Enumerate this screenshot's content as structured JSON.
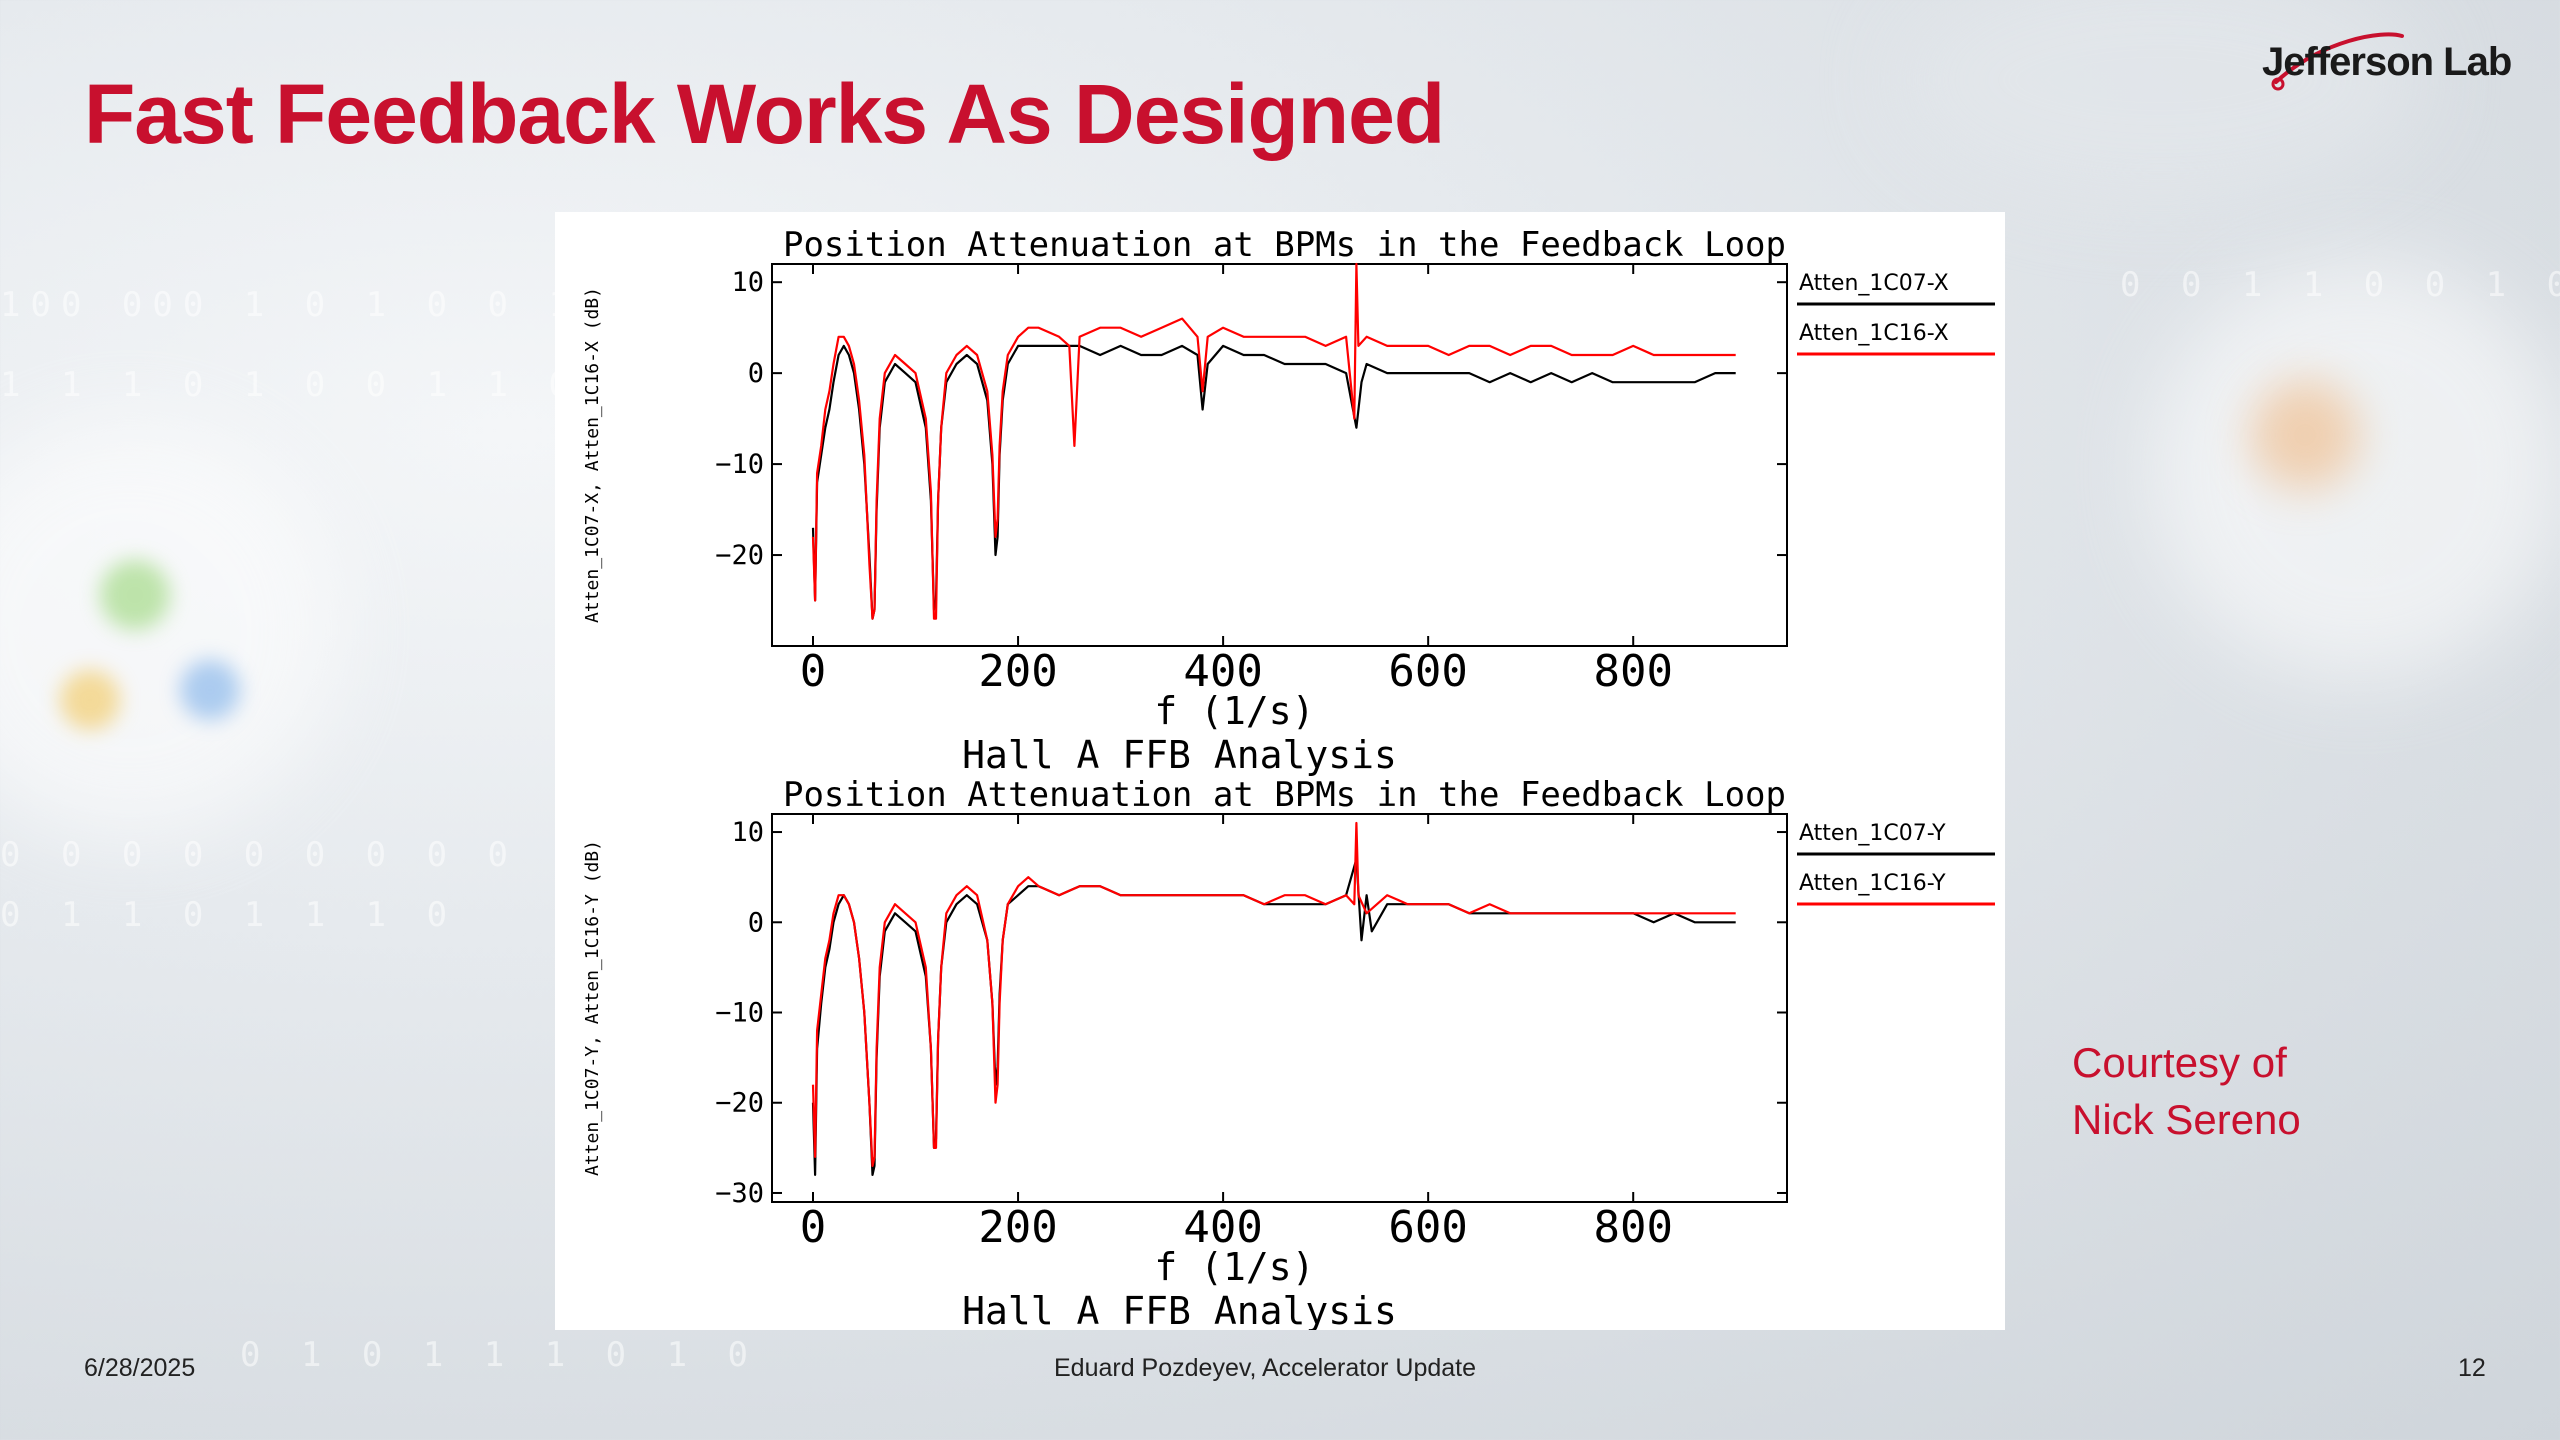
{
  "slide": {
    "title": "Fast Feedback Works As Designed",
    "logo_text": "Jefferson Lab",
    "courtesy_line1": "Courtesy of",
    "courtesy_line2": "Nick Sereno",
    "footer_date": "6/28/2025",
    "footer_center": "Eduard Pozdeyev, Accelerator Update",
    "page_number": "12",
    "colors": {
      "title": "#c8102e",
      "series_black": "#000000",
      "series_red": "#ff0000"
    }
  },
  "chart_data": [
    {
      "type": "line",
      "title": "Position Attenuation at BPMs in the Feedback Loop",
      "subtitle": "Hall A FFB Analysis",
      "xlabel": "f (1/s)",
      "ylabel": "Atten_1C07-X, Atten_1C16-X (dB)",
      "xlim": [
        -40,
        950
      ],
      "ylim": [
        -30,
        12
      ],
      "xticks": [
        0,
        200,
        400,
        600,
        800
      ],
      "xtick_labels": [
        "0",
        "200",
        "400",
        "600",
        "800"
      ],
      "yticks": [
        10,
        0,
        -10,
        -20
      ],
      "ytick_labels": [
        "10",
        "0",
        "−10",
        "−20"
      ],
      "legend_position": "right",
      "series": [
        {
          "name": "Atten_1C07-X",
          "color": "#000000",
          "x": [
            0,
            2,
            4,
            8,
            12,
            16,
            20,
            25,
            30,
            35,
            40,
            45,
            50,
            55,
            58,
            60,
            62,
            65,
            70,
            80,
            90,
            100,
            110,
            115,
            118,
            120,
            122,
            125,
            130,
            140,
            150,
            160,
            170,
            175,
            178,
            180,
            182,
            185,
            190,
            200,
            210,
            220,
            240,
            260,
            280,
            300,
            320,
            340,
            360,
            375,
            380,
            385,
            400,
            420,
            440,
            460,
            480,
            500,
            520,
            530,
            535,
            540,
            560,
            580,
            600,
            620,
            640,
            660,
            680,
            700,
            720,
            740,
            760,
            780,
            800,
            820,
            840,
            860,
            880,
            900
          ],
          "y": [
            -17,
            -25,
            -12,
            -9,
            -6,
            -4,
            -1,
            2,
            3,
            2,
            0,
            -4,
            -10,
            -20,
            -27,
            -26,
            -15,
            -6,
            -1,
            1,
            0,
            -1,
            -6,
            -14,
            -26,
            -25,
            -14,
            -6,
            -1,
            1,
            2,
            1,
            -3,
            -10,
            -20,
            -18,
            -9,
            -3,
            1,
            3,
            3,
            3,
            3,
            3,
            2,
            3,
            2,
            2,
            3,
            2,
            -4,
            1,
            3,
            2,
            2,
            1,
            1,
            1,
            0,
            -6,
            -1,
            1,
            0,
            0,
            0,
            0,
            0,
            -1,
            0,
            -1,
            0,
            -1,
            0,
            -1,
            -1,
            -1,
            -1,
            -1,
            0,
            0
          ]
        },
        {
          "name": "Atten_1C16-X",
          "color": "#ff0000",
          "x": [
            0,
            2,
            4,
            8,
            12,
            16,
            20,
            25,
            30,
            35,
            40,
            45,
            50,
            55,
            58,
            60,
            62,
            65,
            70,
            80,
            90,
            100,
            110,
            115,
            118,
            120,
            122,
            125,
            130,
            140,
            150,
            160,
            170,
            175,
            178,
            180,
            182,
            185,
            190,
            200,
            210,
            220,
            240,
            250,
            255,
            260,
            280,
            300,
            320,
            340,
            360,
            375,
            380,
            385,
            400,
            420,
            440,
            460,
            480,
            500,
            520,
            528,
            530,
            532,
            540,
            560,
            580,
            600,
            620,
            640,
            660,
            680,
            700,
            720,
            740,
            760,
            780,
            800,
            820,
            840,
            860,
            880,
            900
          ],
          "y": [
            -18,
            -25,
            -11,
            -8,
            -4,
            -2,
            1,
            4,
            4,
            3,
            1,
            -3,
            -9,
            -21,
            -27,
            -26,
            -14,
            -5,
            0,
            2,
            1,
            0,
            -5,
            -13,
            -27,
            -27,
            -14,
            -6,
            0,
            2,
            3,
            2,
            -2,
            -9,
            -18,
            -16,
            -8,
            -2,
            2,
            4,
            5,
            5,
            4,
            3,
            -8,
            4,
            5,
            5,
            4,
            5,
            6,
            4,
            -2,
            4,
            5,
            4,
            4,
            4,
            4,
            3,
            4,
            -5,
            12,
            3,
            4,
            3,
            3,
            3,
            2,
            3,
            3,
            2,
            3,
            3,
            2,
            2,
            2,
            3,
            2,
            2,
            2,
            2,
            2
          ]
        }
      ]
    },
    {
      "type": "line",
      "title": "Position Attenuation at BPMs in the Feedback Loop",
      "subtitle": "Hall A FFB Analysis",
      "xlabel": "f (1/s)",
      "ylabel": "Atten_1C07-Y, Atten_1C16-Y (dB)",
      "xlim": [
        -40,
        950
      ],
      "ylim": [
        -31,
        12
      ],
      "xticks": [
        0,
        200,
        400,
        600,
        800
      ],
      "xtick_labels": [
        "0",
        "200",
        "400",
        "600",
        "800"
      ],
      "yticks": [
        10,
        0,
        -10,
        -20,
        -30
      ],
      "ytick_labels": [
        "10",
        "0",
        "−10",
        "−20",
        "−30"
      ],
      "legend_position": "right",
      "series": [
        {
          "name": "Atten_1C07-Y",
          "color": "#000000",
          "x": [
            0,
            2,
            4,
            8,
            12,
            16,
            20,
            25,
            30,
            35,
            40,
            45,
            50,
            55,
            58,
            60,
            62,
            65,
            70,
            80,
            90,
            100,
            110,
            115,
            118,
            120,
            122,
            125,
            130,
            140,
            150,
            160,
            170,
            175,
            178,
            180,
            182,
            185,
            190,
            200,
            210,
            220,
            240,
            260,
            280,
            300,
            320,
            340,
            360,
            380,
            400,
            420,
            440,
            460,
            480,
            500,
            520,
            530,
            535,
            540,
            545,
            560,
            580,
            600,
            620,
            640,
            660,
            680,
            700,
            720,
            740,
            760,
            780,
            800,
            820,
            840,
            860,
            880,
            900
          ],
          "y": [
            -20,
            -28,
            -14,
            -9,
            -5,
            -3,
            0,
            2,
            3,
            2,
            0,
            -4,
            -10,
            -20,
            -28,
            -27,
            -15,
            -6,
            -1,
            1,
            0,
            -1,
            -6,
            -14,
            -25,
            -24,
            -13,
            -5,
            0,
            2,
            3,
            2,
            -2,
            -9,
            -18,
            -16,
            -8,
            -2,
            2,
            3,
            4,
            4,
            3,
            4,
            4,
            3,
            3,
            3,
            3,
            3,
            3,
            3,
            2,
            2,
            2,
            2,
            3,
            7,
            -2,
            3,
            -1,
            2,
            2,
            2,
            2,
            1,
            1,
            1,
            1,
            1,
            1,
            1,
            1,
            1,
            0,
            1,
            0,
            0,
            0
          ]
        },
        {
          "name": "Atten_1C16-Y",
          "color": "#ff0000",
          "x": [
            0,
            2,
            4,
            8,
            12,
            16,
            20,
            25,
            30,
            35,
            40,
            45,
            50,
            55,
            58,
            60,
            62,
            65,
            70,
            80,
            90,
            100,
            110,
            115,
            118,
            120,
            122,
            125,
            130,
            140,
            150,
            160,
            170,
            175,
            178,
            180,
            182,
            185,
            190,
            200,
            210,
            220,
            240,
            260,
            280,
            300,
            320,
            340,
            360,
            380,
            400,
            420,
            440,
            460,
            480,
            500,
            520,
            528,
            530,
            532,
            540,
            560,
            580,
            600,
            620,
            640,
            660,
            680,
            700,
            720,
            740,
            760,
            780,
            800,
            820,
            840,
            860,
            880,
            900
          ],
          "y": [
            -18,
            -26,
            -12,
            -8,
            -4,
            -2,
            1,
            3,
            3,
            2,
            0,
            -4,
            -10,
            -20,
            -27,
            -26,
            -14,
            -5,
            0,
            2,
            1,
            0,
            -5,
            -14,
            -25,
            -25,
            -13,
            -5,
            1,
            3,
            4,
            3,
            -2,
            -9,
            -20,
            -18,
            -9,
            -2,
            2,
            4,
            5,
            4,
            3,
            4,
            4,
            3,
            3,
            3,
            3,
            3,
            3,
            3,
            2,
            3,
            3,
            2,
            3,
            2,
            11,
            3,
            1,
            3,
            2,
            2,
            2,
            1,
            2,
            1,
            1,
            1,
            1,
            1,
            1,
            1,
            1,
            1,
            1,
            1,
            1
          ]
        }
      ]
    }
  ]
}
